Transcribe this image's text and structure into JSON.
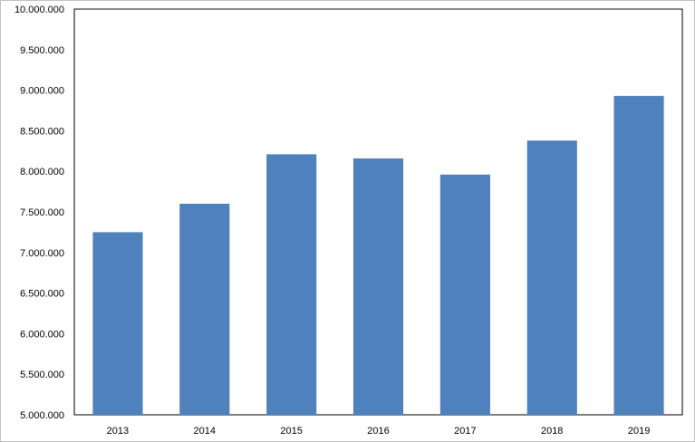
{
  "chart_data": {
    "type": "bar",
    "title": "",
    "xlabel": "",
    "ylabel": "",
    "categories": [
      "2013",
      "2014",
      "2015",
      "2016",
      "2017",
      "2018",
      "2019"
    ],
    "values": [
      7250000,
      7600000,
      8210000,
      8160000,
      7960000,
      8380000,
      8930000
    ],
    "ylim": [
      5000000,
      10000000
    ],
    "y_ticks": [
      5000000,
      5500000,
      6000000,
      6500000,
      7000000,
      7500000,
      8000000,
      8500000,
      9000000,
      9500000,
      10000000
    ],
    "y_tick_labels": [
      "5.000.000",
      "5.500.000",
      "6.000.000",
      "6.500.000",
      "7.000.000",
      "7.500.000",
      "8.000.000",
      "8.500.000",
      "9.000.000",
      "9.500.000",
      "10.000.000"
    ],
    "grid": false,
    "legend": "none",
    "colors": {
      "bar": "#4f81bd",
      "plot_border": "#000000",
      "chart_border": "#bfbfbf"
    }
  }
}
